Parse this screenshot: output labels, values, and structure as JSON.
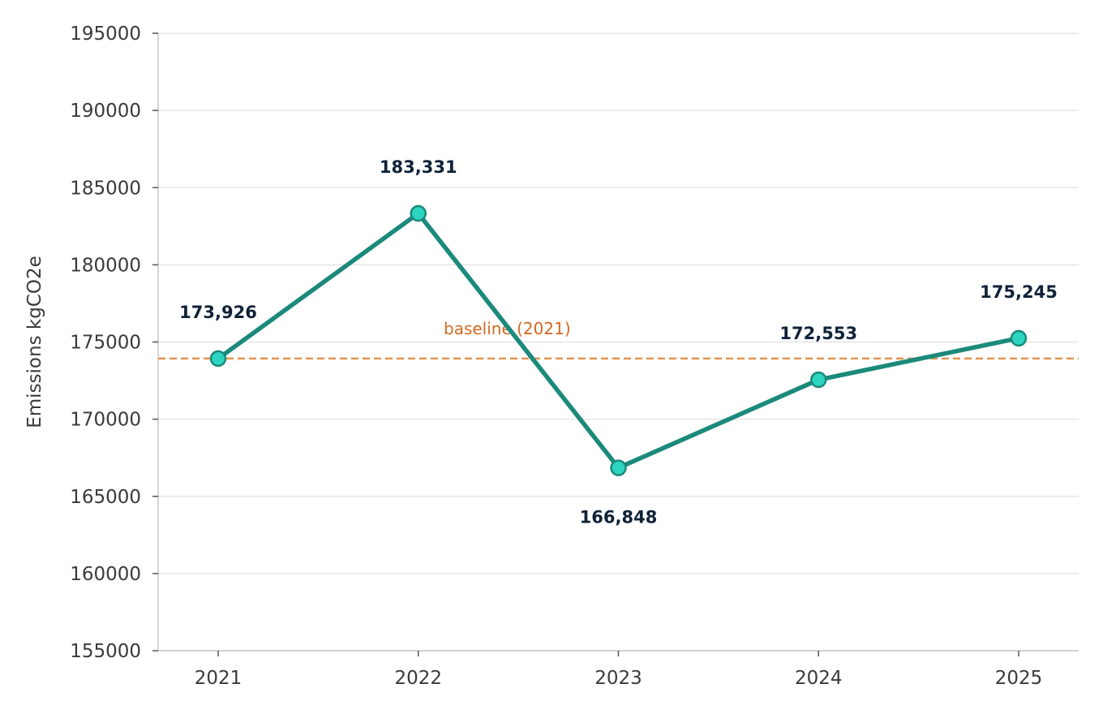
{
  "chart_data": {
    "type": "line",
    "title": "",
    "xlabel": "",
    "ylabel": "Emissions kgCO2e",
    "categories": [
      "2021",
      "2022",
      "2023",
      "2024",
      "2025"
    ],
    "series": [
      {
        "values": [
          173926,
          183331,
          166848,
          172553,
          175245
        ]
      }
    ],
    "data_labels": [
      "173,926",
      "183,331",
      "166,848",
      "172,553",
      "175,245"
    ],
    "ylim": [
      155000,
      195000
    ],
    "yticks": [
      "155000",
      "160000",
      "165000",
      "170000",
      "175000",
      "180000",
      "185000",
      "190000",
      "195000"
    ],
    "ytick_values": [
      155000,
      160000,
      165000,
      170000,
      175000,
      180000,
      185000,
      190000,
      195000
    ],
    "reference_line": {
      "label": "baseline (2021)",
      "value": 173926,
      "style": "dashed"
    },
    "grid": "horizontal",
    "legend": "none",
    "colors": {
      "line": "#1b8a7a",
      "marker_fill": "#2dd4bf",
      "marker_edge": "#1b8a7a",
      "baseline": "#e39552",
      "baseline_label": "#d2691e",
      "grid": "#e6e6e6",
      "axis": "#c8c8c8"
    }
  }
}
